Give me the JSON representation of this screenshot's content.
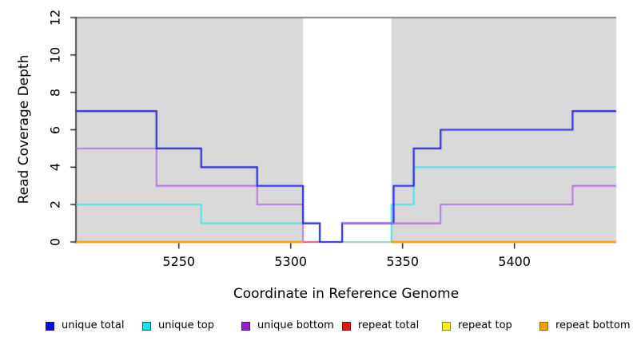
{
  "chart_data": {
    "type": "line",
    "step": true,
    "xlabel": "Coordinate in Reference Genome",
    "ylabel": "Read Coverage Depth",
    "xlim": [
      5204,
      5445.5
    ],
    "ylim": [
      0,
      12
    ],
    "x_ticks": [
      5250,
      5300,
      5350,
      5400
    ],
    "y_ticks": [
      0,
      2,
      4,
      6,
      8,
      10,
      12
    ],
    "grid": false,
    "plot_background": "#d9d9d9",
    "top_border_color": "#606060",
    "axis_color": "#000000",
    "highlight_band": {
      "x0": 5305.5,
      "x1": 5345,
      "color": "#ffffff"
    },
    "series": [
      {
        "name": "unique total",
        "color": "#2b2be0",
        "points": [
          [
            5204,
            7
          ],
          [
            5240,
            5
          ],
          [
            5260,
            4
          ],
          [
            5285,
            3
          ],
          [
            5305.5,
            1
          ],
          [
            5313,
            0
          ],
          [
            5323,
            1
          ],
          [
            5346,
            3
          ],
          [
            5355,
            5
          ],
          [
            5367,
            6
          ],
          [
            5426,
            7
          ],
          [
            5445.5,
            7
          ]
        ]
      },
      {
        "name": "unique top",
        "color": "#3fe4e8",
        "points": [
          [
            5204,
            2
          ],
          [
            5260,
            1
          ],
          [
            5313,
            0
          ],
          [
            5345,
            2
          ],
          [
            5355,
            4
          ],
          [
            5445.5,
            4
          ]
        ]
      },
      {
        "name": "unique bottom",
        "color": "#b570e0",
        "points": [
          [
            5204,
            5
          ],
          [
            5240,
            3
          ],
          [
            5285,
            2
          ],
          [
            5305.5,
            0
          ],
          [
            5323,
            1
          ],
          [
            5367,
            2
          ],
          [
            5426,
            3
          ],
          [
            5445.5,
            3
          ]
        ]
      },
      {
        "name": "repeat total",
        "color": "#dd5b6e",
        "points": [
          [
            5204,
            0
          ],
          [
            5445.5,
            0
          ]
        ]
      },
      {
        "name": "repeat top",
        "color": "#8bd8a2",
        "points": [
          [
            5204,
            0
          ],
          [
            5445.5,
            0
          ]
        ]
      },
      {
        "name": "repeat bottom",
        "color": "#ff9c00",
        "points": [
          [
            5204,
            0
          ],
          [
            5445.5,
            0
          ]
        ]
      }
    ],
    "visible_zero_segments": [
      {
        "color": "#8bd8a2",
        "x0": 5313,
        "x1": 5345
      },
      {
        "color": "#dd5b6e",
        "x0": 5305.5,
        "x1": 5313
      },
      {
        "color": "#ff9c00",
        "x0": 5204,
        "x1": 5305.5
      },
      {
        "color": "#ff9c00",
        "x0": 5345,
        "x1": 5445.5
      }
    ],
    "purple_over_blue_segment": {
      "color": "#b570e0",
      "y": 1,
      "x0": 5323,
      "x1": 5367
    }
  },
  "legend": {
    "items": [
      {
        "label": "unique total",
        "fill": "#0b0bee",
        "border": "#1a1a8c"
      },
      {
        "label": "unique top",
        "fill": "#18e0e8",
        "border": "#0c6a6a"
      },
      {
        "label": "unique bottom",
        "fill": "#991fd4",
        "border": "#5f1284"
      },
      {
        "label": "repeat total",
        "fill": "#ee1111",
        "border": "#8e0b0b"
      },
      {
        "label": "repeat top",
        "fill": "#f8f011",
        "border": "#8f8a0a"
      },
      {
        "label": "repeat bottom",
        "fill": "#ff9d00",
        "border": "#9e6000"
      }
    ]
  }
}
